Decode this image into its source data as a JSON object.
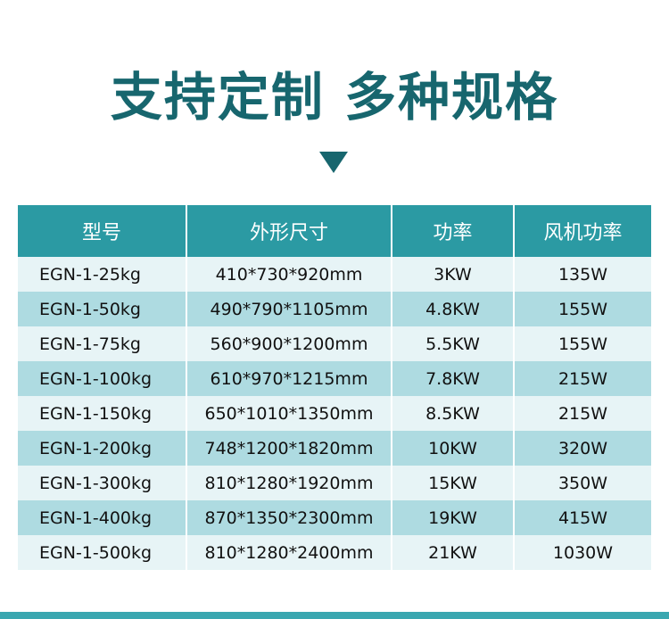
{
  "header": {
    "title": "支持定制 多种规格"
  },
  "table": {
    "headers": [
      "型号",
      "外形尺寸",
      "功率",
      "风机功率"
    ],
    "rows": [
      [
        "EGN-1-25kg",
        "410*730*920mm",
        "3KW",
        "135W"
      ],
      [
        "EGN-1-50kg",
        "490*790*1105mm",
        "4.8KW",
        "155W"
      ],
      [
        "EGN-1-75kg",
        "560*900*1200mm",
        "5.5KW",
        "155W"
      ],
      [
        "EGN-1-100kg",
        "610*970*1215mm",
        "7.8KW",
        "215W"
      ],
      [
        "EGN-1-150kg",
        "650*1010*1350mm",
        "8.5KW",
        "215W"
      ],
      [
        "EGN-1-200kg",
        "748*1200*1820mm",
        "10KW",
        "320W"
      ],
      [
        "EGN-1-300kg",
        "810*1280*1920mm",
        "15KW",
        "350W"
      ],
      [
        "EGN-1-400kg",
        "870*1350*2300mm",
        "19KW",
        "415W"
      ],
      [
        "EGN-1-500kg",
        "810*1280*2400mm",
        "21KW",
        "1030W"
      ]
    ]
  }
}
